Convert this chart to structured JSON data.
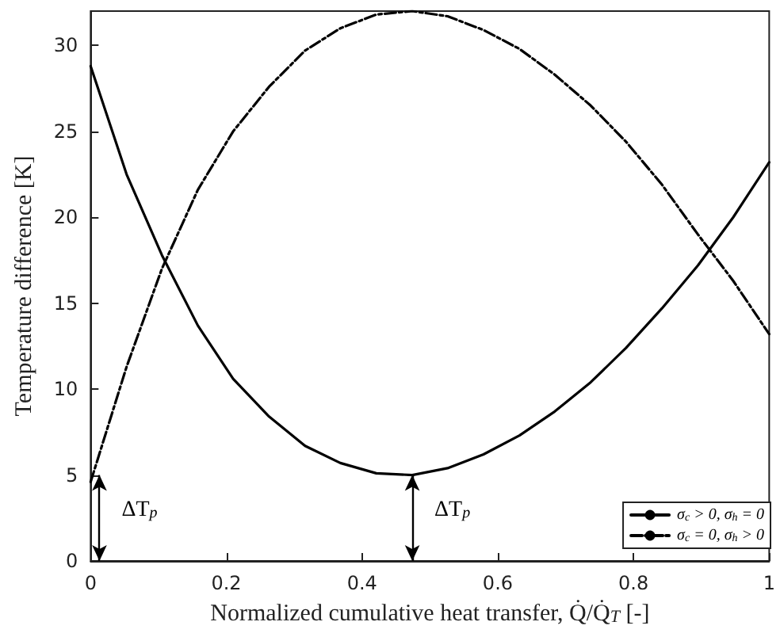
{
  "chart_data": {
    "type": "line",
    "xlabel": "Normalized cumulative heat transfer, Q̇/Q̇$_{T}$ [-]",
    "ylabel": "Temperature difference [K]",
    "x": [
      0,
      0.053,
      0.105,
      0.158,
      0.21,
      0.263,
      0.316,
      0.368,
      0.421,
      0.474,
      0.526,
      0.579,
      0.632,
      0.684,
      0.737,
      0.789,
      0.842,
      0.895,
      0.947,
      1.0
    ],
    "series": [
      {
        "name": "σ$_{c}$ > 0, σ$_{h}$ = 0",
        "color": "#000000",
        "line_style": "solid",
        "values": [
          28.8,
          22.5,
          17.8,
          13.7,
          10.6,
          8.4,
          6.7,
          5.7,
          5.1,
          5.0,
          5.4,
          6.2,
          7.3,
          8.7,
          10.4,
          12.4,
          14.7,
          17.2,
          20.0,
          23.2
        ]
      },
      {
        "name": "σ$_{c}$ = 0, σ$_{h}$ > 0",
        "color": "#000000",
        "line_style": "dashed",
        "values": [
          4.6,
          11.3,
          17.0,
          21.6,
          25.0,
          27.6,
          29.7,
          31.0,
          31.8,
          32.0,
          31.7,
          30.9,
          29.8,
          28.3,
          26.5,
          24.4,
          21.9,
          19.0,
          16.3,
          13.2
        ]
      }
    ],
    "xlim": [
      0,
      1
    ],
    "xticks": [
      0,
      0.2,
      0.4,
      0.6,
      0.8,
      1
    ],
    "ylim": [
      0,
      32
    ],
    "yticks": [
      0,
      5,
      10,
      15,
      20,
      25,
      30
    ],
    "annotations": [
      {
        "text": "ΔT$_{p}$",
        "x": 0.013,
        "y": 5
      },
      {
        "text": "ΔT$_{p}$",
        "x": 0.474,
        "y": 5
      }
    ],
    "grid": false,
    "legend": "bottom right",
    "marker": "none"
  }
}
